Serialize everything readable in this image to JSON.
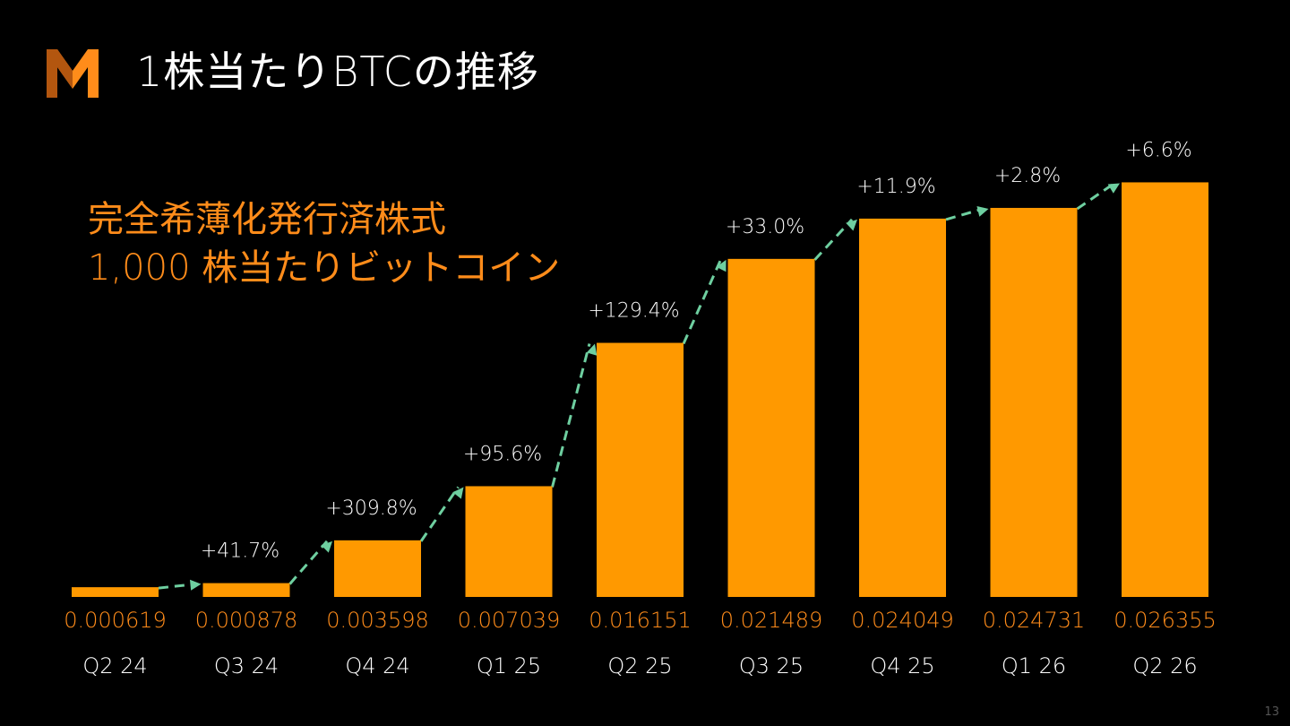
{
  "title": "1株当たりBTCの推移",
  "subtitle_lines": [
    "完全希薄化発行済株式",
    "1,000 株当たりビットコイン"
  ],
  "page_number": "13",
  "colors": {
    "background": "#000000",
    "bar": "#ff9900",
    "value_text": "#ff8c1a",
    "connector": "#6ecfa0",
    "text": "#ffffff"
  },
  "logo_icon": "m-logo-icon",
  "chart_data": {
    "type": "bar",
    "categories": [
      "Q2 24",
      "Q3 24",
      "Q4 24",
      "Q1 25",
      "Q2 25",
      "Q3 25",
      "Q4 25",
      "Q1 26",
      "Q2 26"
    ],
    "values": [
      0.000619,
      0.000878,
      0.003598,
      0.007039,
      0.016151,
      0.021489,
      0.024049,
      0.024731,
      0.026355
    ],
    "value_labels": [
      "0.000619",
      "0.000878",
      "0.003598",
      "0.007039",
      "0.016151",
      "0.021489",
      "0.024049",
      "0.024731",
      "0.026355"
    ],
    "growth_labels": [
      "+41.7%",
      "+309.8%",
      "+95.6%",
      "+129.4%",
      "+33.0%",
      "+11.9%",
      "+2.8%",
      "+6.6%"
    ],
    "xlabel": "",
    "ylabel": "",
    "ylim": [
      0,
      0.0294
    ],
    "grid": false,
    "legend": "none"
  }
}
